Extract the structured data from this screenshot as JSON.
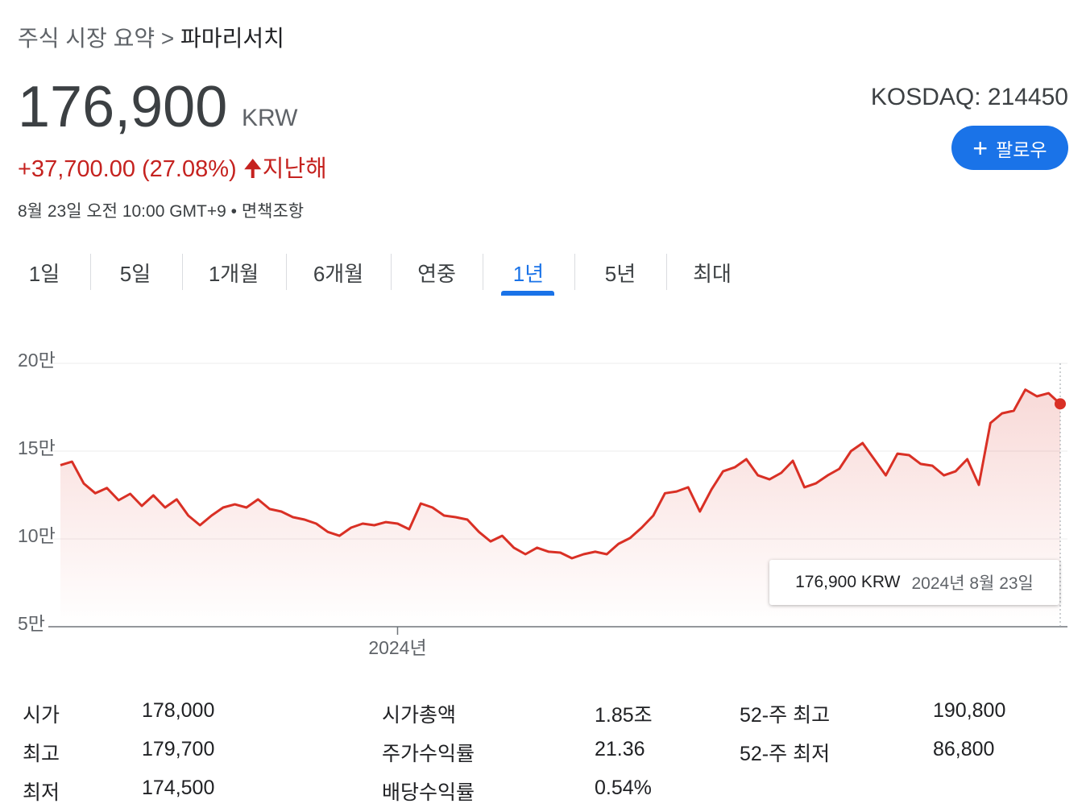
{
  "breadcrumb": [
    "주식 시장 요약",
    "파마리서치"
  ],
  "header": {
    "price": "176,900",
    "currency": "KRW",
    "change": "+37,700.00 (27.08%)",
    "period": "지난해",
    "exchange": "KOSDAQ: 214450",
    "follow": "팔로우",
    "timestamp": "8월 23일 오전 10:00 GMT+9 • 면책조항"
  },
  "tabs": {
    "items": [
      "1일",
      "5일",
      "1개월",
      "6개월",
      "연중",
      "1년",
      "5년",
      "최대"
    ],
    "selected": 5
  },
  "chart_data": {
    "type": "line",
    "color": "#d93025",
    "values": [
      142000,
      144000,
      131600,
      126000,
      129000,
      122000,
      125700,
      118800,
      124800,
      117900,
      122500,
      113300,
      107800,
      113300,
      117900,
      119700,
      117900,
      122500,
      117000,
      115600,
      112400,
      111000,
      108700,
      104000,
      101800,
      106400,
      108700,
      107800,
      109600,
      108700,
      105500,
      120200,
      117900,
      113300,
      112400,
      111000,
      104000,
      98600,
      101800,
      95000,
      91300,
      95000,
      92700,
      92200,
      89000,
      91300,
      92700,
      91300,
      97200,
      100500,
      106400,
      113300,
      126000,
      127000,
      129400,
      115600,
      128100,
      138500,
      140800,
      145400,
      136200,
      133900,
      137600,
      144500,
      129400,
      131700,
      136200,
      139900,
      150000,
      154600,
      145400,
      136200,
      148600,
      147700,
      142700,
      141700,
      136200,
      138500,
      145400,
      130800,
      166000,
      171500,
      173000,
      185000,
      181200,
      183000,
      176900
    ],
    "xlim": [
      0,
      86
    ],
    "xticks": [
      {
        "value": 29,
        "label": "2024년"
      }
    ],
    "ylim": [
      50000,
      200000
    ],
    "yticks": [
      {
        "value": 50000,
        "label": "5만"
      },
      {
        "value": 100000,
        "label": "10만"
      },
      {
        "value": 150000,
        "label": "15만"
      },
      {
        "value": 200000,
        "label": "20만"
      }
    ],
    "grid": true,
    "tooltip": {
      "value": 176900,
      "label": "176,900 KRW",
      "date": "2024년 8월 23일"
    }
  },
  "stats": [
    [
      [
        "시가",
        "178,000"
      ],
      [
        "최고",
        "179,700"
      ],
      [
        "최저",
        "174,500"
      ]
    ],
    [
      [
        "시가총액",
        "1.85조"
      ],
      [
        "주가수익률",
        "21.36"
      ],
      [
        "배당수익률",
        "0.54%"
      ]
    ],
    [
      [
        "52-주 최고",
        "190,800"
      ],
      [
        "52-주 최저",
        "86,800"
      ]
    ]
  ]
}
